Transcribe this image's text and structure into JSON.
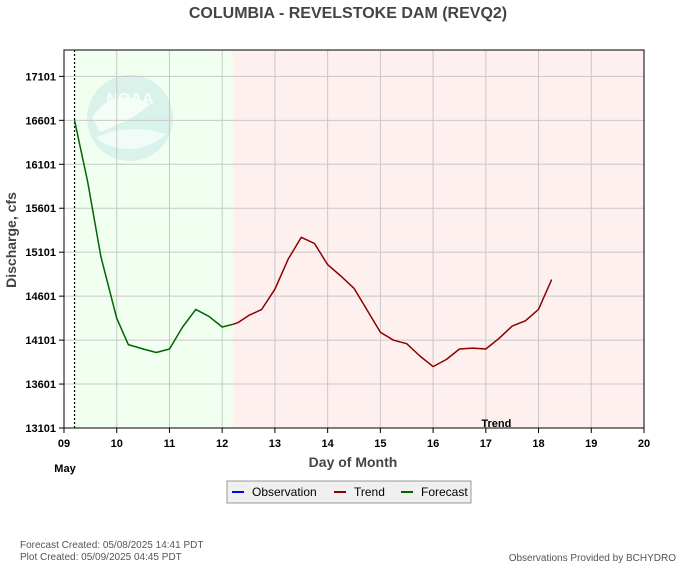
{
  "title": "COLUMBIA - REVELSTOKE DAM  (REVQ2)",
  "footer": {
    "forecast_created": "Forecast Created: 05/08/2025 14:41 PDT",
    "plot_created": "Plot Created: 05/09/2025 04:45 PDT",
    "provider": "Observations Provided by BCHYDRO"
  },
  "logo_text": "NOAA",
  "legend": [
    {
      "label": "Observation",
      "color": "#0000ff"
    },
    {
      "label": "Trend",
      "color": "#8b0000"
    },
    {
      "label": "Forecast",
      "color": "#006400"
    }
  ],
  "colors": {
    "forecast_region": "#f0fff0",
    "trend_region": "#fff0f0",
    "forecast_line": "#006400",
    "trend_line": "#8b0000",
    "grid": "#c8c8c8"
  },
  "chart_data": {
    "type": "line",
    "xlabel": "Day of Month",
    "ylabel": "Discharge, cfs",
    "x_month_label": "May",
    "xlim": [
      9,
      20
    ],
    "ylim": [
      13101,
      17401
    ],
    "x_ticks": [
      "09",
      "10",
      "11",
      "12",
      "13",
      "14",
      "15",
      "16",
      "17",
      "18",
      "19",
      "20"
    ],
    "y_ticks": [
      "13101",
      "13601",
      "14101",
      "14601",
      "15101",
      "15601",
      "16101",
      "16601",
      "17101"
    ],
    "grid": true,
    "regions": [
      {
        "name": "forecast",
        "x": [
          9.2,
          12.2
        ]
      },
      {
        "name": "trend",
        "x": [
          12.2,
          20
        ]
      }
    ],
    "annotations": [
      {
        "text": "Trend",
        "x": 17.2
      }
    ],
    "series": [
      {
        "name": "Forecast",
        "color": "#006400",
        "points": [
          [
            9.2,
            16601
          ],
          [
            9.45,
            15900
          ],
          [
            9.7,
            15050
          ],
          [
            10.0,
            14350
          ],
          [
            10.22,
            14050
          ],
          [
            10.5,
            14000
          ],
          [
            10.75,
            13960
          ],
          [
            11.0,
            14000
          ],
          [
            11.25,
            14250
          ],
          [
            11.5,
            14450
          ],
          [
            11.75,
            14370
          ],
          [
            12.0,
            14250
          ],
          [
            12.2,
            14280
          ]
        ]
      },
      {
        "name": "Trend",
        "color": "#8b0000",
        "points": [
          [
            12.2,
            14280
          ],
          [
            12.3,
            14300
          ],
          [
            12.5,
            14380
          ],
          [
            12.75,
            14450
          ],
          [
            13.0,
            14680
          ],
          [
            13.25,
            15020
          ],
          [
            13.5,
            15270
          ],
          [
            13.75,
            15200
          ],
          [
            14.0,
            14960
          ],
          [
            14.25,
            14830
          ],
          [
            14.5,
            14690
          ],
          [
            14.75,
            14440
          ],
          [
            15.0,
            14190
          ],
          [
            15.25,
            14100
          ],
          [
            15.5,
            14060
          ],
          [
            15.75,
            13920
          ],
          [
            16.0,
            13800
          ],
          [
            16.25,
            13880
          ],
          [
            16.5,
            14000
          ],
          [
            16.75,
            14010
          ],
          [
            17.0,
            14000
          ],
          [
            17.25,
            14120
          ],
          [
            17.5,
            14260
          ],
          [
            17.75,
            14320
          ],
          [
            18.0,
            14450
          ],
          [
            18.25,
            14790
          ]
        ]
      }
    ]
  }
}
